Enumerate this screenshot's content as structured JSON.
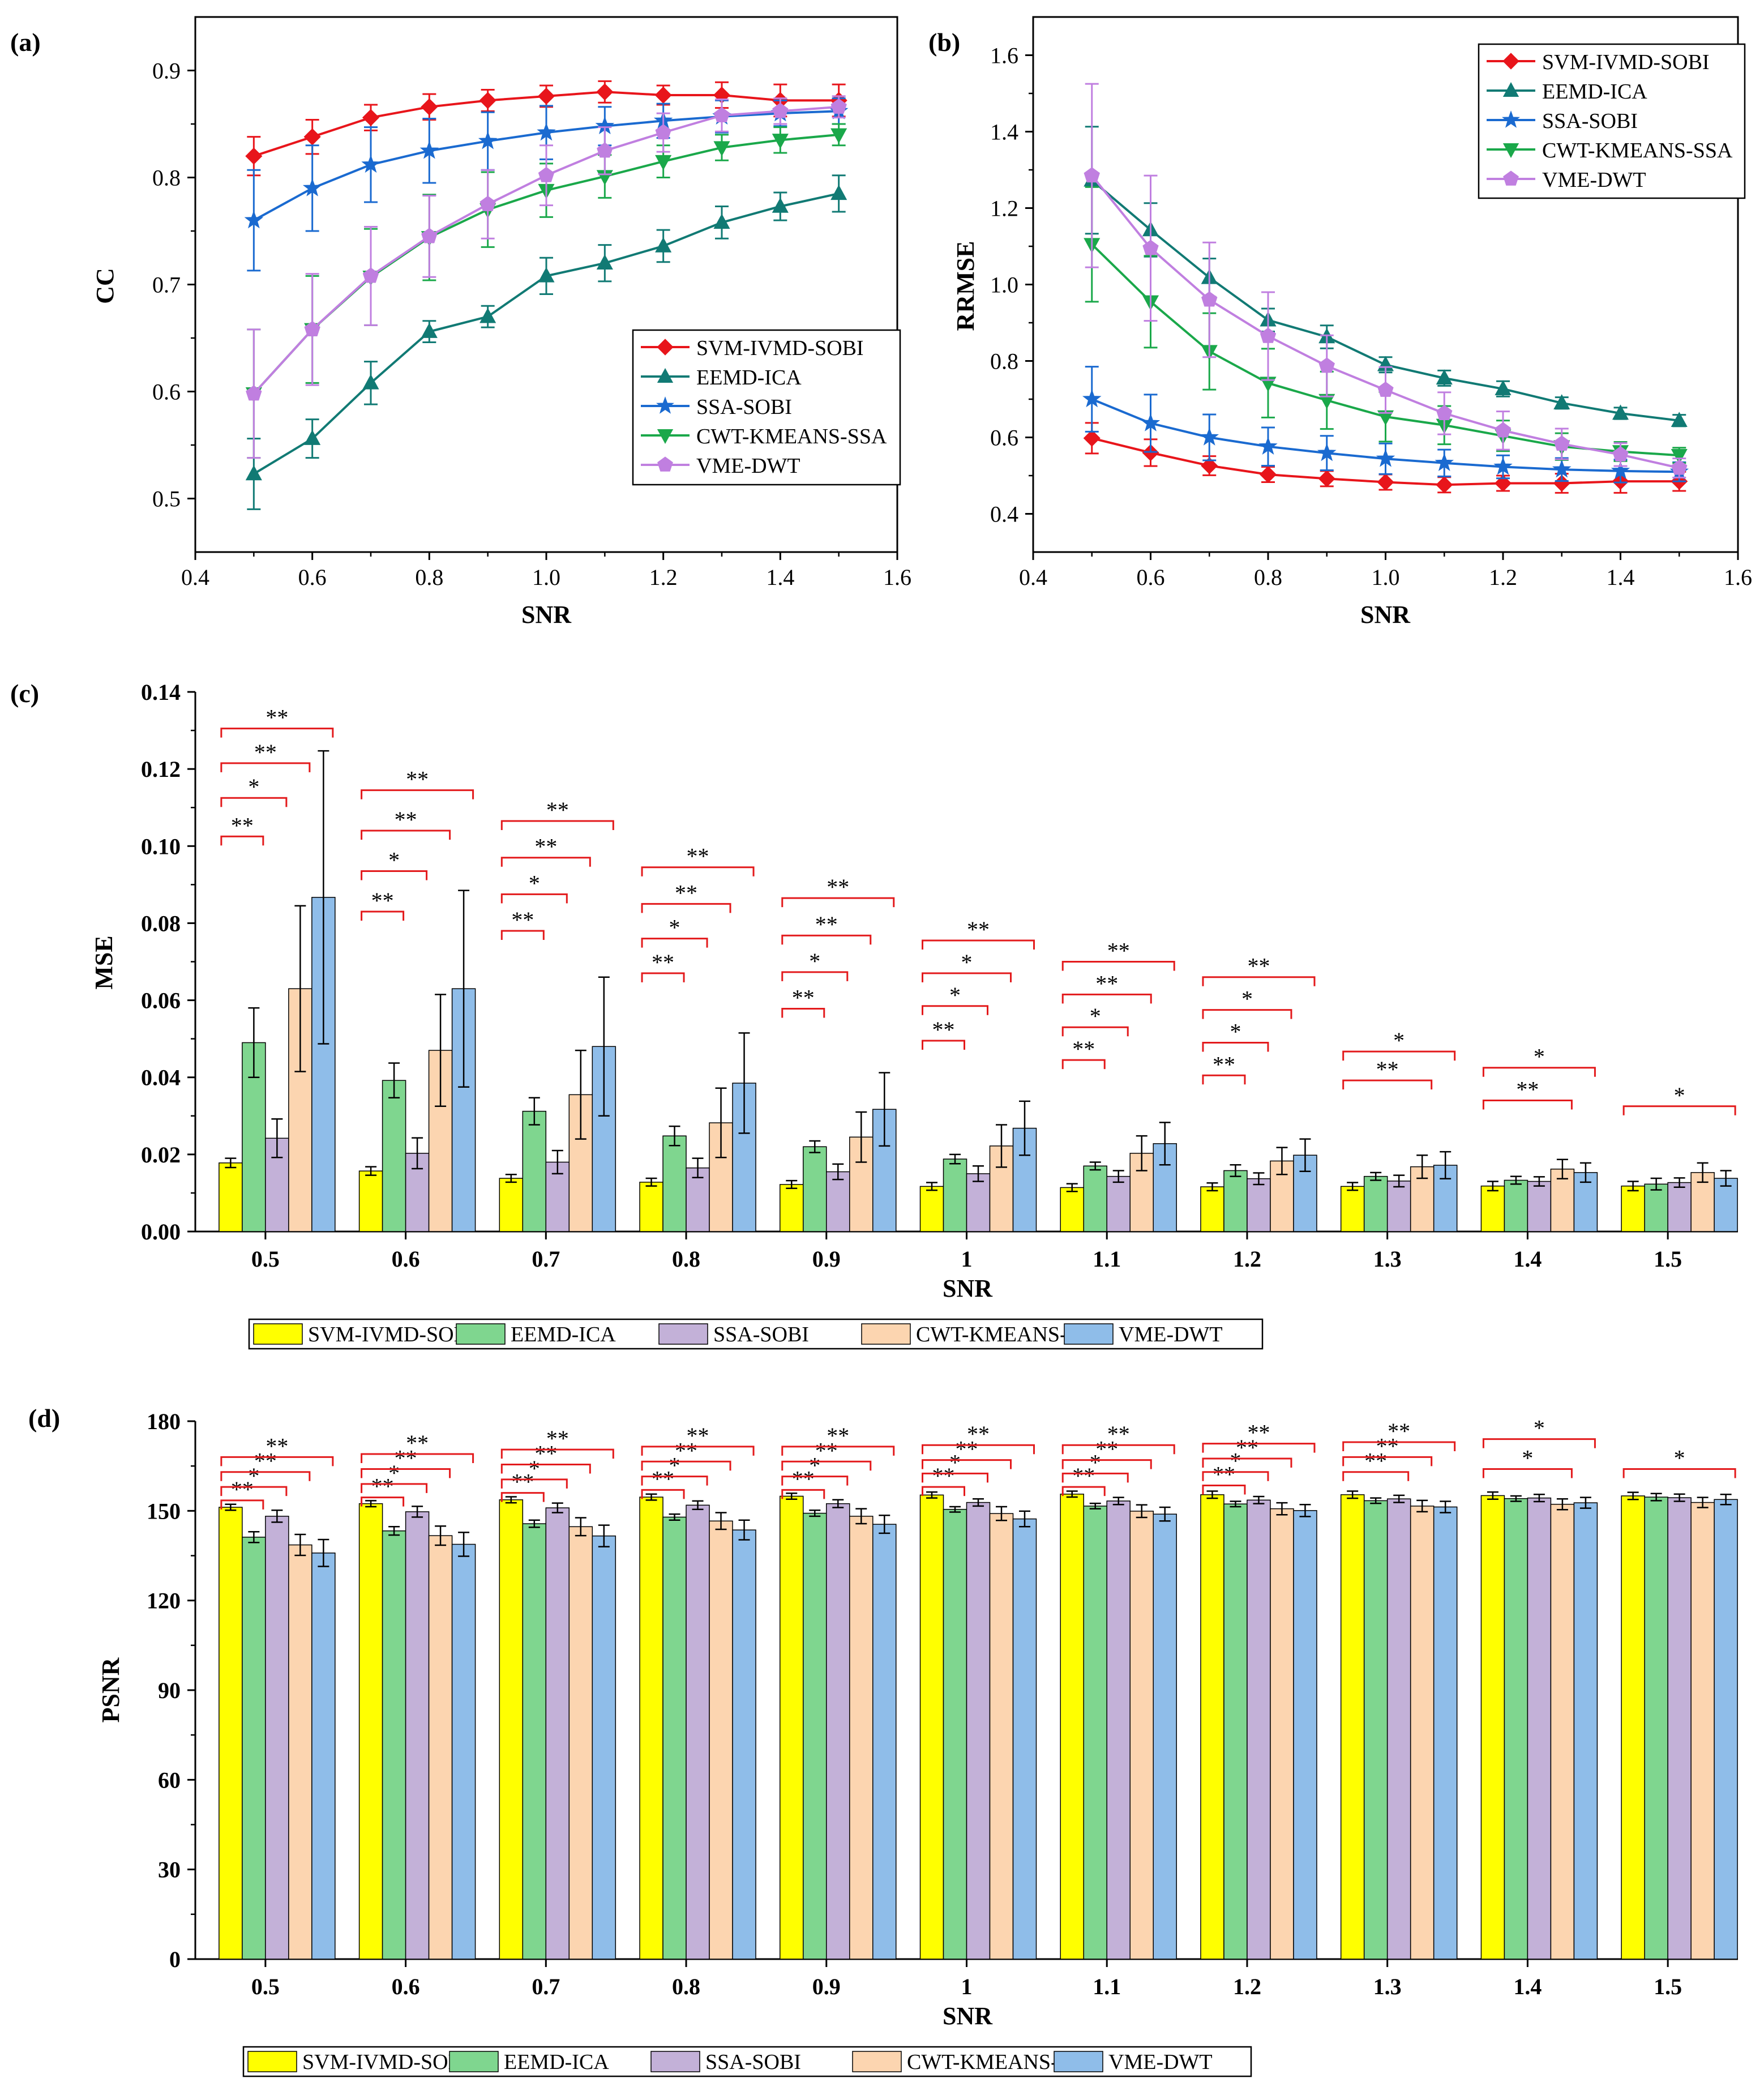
{
  "figure": {
    "series_names": [
      "SVM-IVMD-SOBI",
      "EEMD-ICA",
      "SSA-SOBI",
      "CWT-KMEANS-SSA",
      "VME-DWT"
    ],
    "line_colors": [
      "#e8151b",
      "#117a74",
      "#1a6ad0",
      "#1aa84a",
      "#c07fe0"
    ],
    "bar_colors": [
      "#ffff00",
      "#7fd68f",
      "#c3b1d8",
      "#fcd5b0",
      "#8fbde9"
    ],
    "sig_color": "#e31a1c"
  },
  "chart_data": [
    {
      "id": "a",
      "panel_label": "(a)",
      "type": "line",
      "xlabel": "SNR",
      "ylabel": "CC",
      "xlim": [
        0.4,
        1.6
      ],
      "ylim": [
        0.45,
        0.95
      ],
      "xticks": [
        0.4,
        0.6,
        0.8,
        1.0,
        1.2,
        1.4,
        1.6
      ],
      "xtick_labels": [
        "0.4",
        "0.6",
        "0.8",
        "1.0",
        "1.2",
        "1.4",
        "1.6"
      ],
      "yticks": [
        0.5,
        0.6,
        0.7,
        0.8,
        0.9
      ],
      "ytick_labels": [
        "0.5",
        "0.6",
        "0.7",
        "0.8",
        "0.9"
      ],
      "legend_position": "lower-right",
      "x": [
        0.5,
        0.6,
        0.7,
        0.8,
        0.9,
        1.0,
        1.1,
        1.2,
        1.3,
        1.4,
        1.5
      ],
      "series": [
        {
          "name": "SVM-IVMD-SOBI",
          "marker": "diamond",
          "values": [
            0.82,
            0.838,
            0.856,
            0.866,
            0.872,
            0.876,
            0.88,
            0.877,
            0.877,
            0.872,
            0.872
          ],
          "errors": [
            0.018,
            0.016,
            0.012,
            0.012,
            0.01,
            0.01,
            0.01,
            0.009,
            0.012,
            0.015,
            0.015
          ]
        },
        {
          "name": "EEMD-ICA",
          "marker": "triangle-up",
          "values": [
            0.523,
            0.556,
            0.608,
            0.656,
            0.67,
            0.708,
            0.72,
            0.736,
            0.758,
            0.773,
            0.785
          ],
          "errors": [
            0.033,
            0.018,
            0.02,
            0.01,
            0.01,
            0.017,
            0.017,
            0.015,
            0.015,
            0.013,
            0.017
          ]
        },
        {
          "name": "SSA-SOBI",
          "marker": "star",
          "values": [
            0.76,
            0.79,
            0.812,
            0.825,
            0.834,
            0.842,
            0.848,
            0.853,
            0.857,
            0.86,
            0.862
          ],
          "errors": [
            0.047,
            0.04,
            0.035,
            0.03,
            0.027,
            0.025,
            0.018,
            0.016,
            0.015,
            0.012,
            0.012
          ]
        },
        {
          "name": "CWT-KMEANS-SSA",
          "marker": "triangle-down",
          "values": [
            0.598,
            0.658,
            0.707,
            0.744,
            0.77,
            0.788,
            0.801,
            0.815,
            0.828,
            0.835,
            0.84
          ],
          "errors": [
            0.06,
            0.05,
            0.045,
            0.04,
            0.035,
            0.025,
            0.02,
            0.015,
            0.012,
            0.012,
            0.01
          ]
        },
        {
          "name": "VME-DWT",
          "marker": "pentagon",
          "values": [
            0.598,
            0.658,
            0.708,
            0.745,
            0.775,
            0.802,
            0.825,
            0.842,
            0.858,
            0.862,
            0.866
          ],
          "errors": [
            0.06,
            0.052,
            0.046,
            0.038,
            0.032,
            0.028,
            0.022,
            0.018,
            0.015,
            0.012,
            0.01
          ]
        }
      ]
    },
    {
      "id": "b",
      "panel_label": "(b)",
      "type": "line",
      "xlabel": "SNR",
      "ylabel": "RRMSE",
      "xlim": [
        0.4,
        1.6
      ],
      "ylim": [
        0.3,
        1.7
      ],
      "xticks": [
        0.4,
        0.6,
        0.8,
        1.0,
        1.2,
        1.4,
        1.6
      ],
      "xtick_labels": [
        "0.4",
        "0.6",
        "0.8",
        "1.0",
        "1.2",
        "1.4",
        "1.6"
      ],
      "yticks": [
        0.4,
        0.6,
        0.8,
        1.0,
        1.2,
        1.4,
        1.6
      ],
      "ytick_labels": [
        "0.4",
        "0.6",
        "0.8",
        "1.0",
        "1.2",
        "1.4",
        "1.6"
      ],
      "legend_position": "top-right",
      "x": [
        0.5,
        0.6,
        0.7,
        0.8,
        0.9,
        1.0,
        1.1,
        1.2,
        1.3,
        1.4,
        1.5
      ],
      "series": [
        {
          "name": "SVM-IVMD-SOBI",
          "marker": "diamond",
          "values": [
            0.598,
            0.56,
            0.526,
            0.503,
            0.492,
            0.483,
            0.476,
            0.48,
            0.48,
            0.485,
            0.485
          ],
          "errors": [
            0.04,
            0.035,
            0.025,
            0.02,
            0.02,
            0.02,
            0.02,
            0.02,
            0.025,
            0.03,
            0.025
          ]
        },
        {
          "name": "EEMD-ICA",
          "marker": "triangle-up",
          "values": [
            1.273,
            1.143,
            1.018,
            0.907,
            0.863,
            0.79,
            0.755,
            0.727,
            0.69,
            0.663,
            0.644
          ],
          "errors": [
            0.14,
            0.07,
            0.05,
            0.03,
            0.03,
            0.02,
            0.02,
            0.02,
            0.015,
            0.015,
            0.015
          ]
        },
        {
          "name": "SSA-SOBI",
          "marker": "star",
          "values": [
            0.7,
            0.637,
            0.6,
            0.576,
            0.559,
            0.544,
            0.533,
            0.523,
            0.516,
            0.512,
            0.51
          ],
          "errors": [
            0.085,
            0.075,
            0.06,
            0.05,
            0.045,
            0.04,
            0.035,
            0.03,
            0.03,
            0.03,
            0.025
          ]
        },
        {
          "name": "CWT-KMEANS-SSA",
          "marker": "triangle-down",
          "values": [
            1.105,
            0.955,
            0.825,
            0.742,
            0.697,
            0.654,
            0.632,
            0.604,
            0.576,
            0.563,
            0.553
          ],
          "errors": [
            0.15,
            0.12,
            0.1,
            0.09,
            0.075,
            0.065,
            0.05,
            0.04,
            0.035,
            0.025,
            0.02
          ]
        },
        {
          "name": "VME-DWT",
          "marker": "pentagon",
          "values": [
            1.285,
            1.095,
            0.96,
            0.865,
            0.787,
            0.724,
            0.663,
            0.618,
            0.583,
            0.555,
            0.52
          ],
          "errors": [
            0.24,
            0.19,
            0.15,
            0.115,
            0.08,
            0.06,
            0.055,
            0.05,
            0.04,
            0.03,
            0.025
          ]
        }
      ]
    },
    {
      "id": "c",
      "panel_label": "(c)",
      "type": "bar",
      "xlabel": "SNR",
      "ylabel": "MSE",
      "ylim": [
        0,
        0.14
      ],
      "yticks": [
        0,
        0.02,
        0.04,
        0.06,
        0.08,
        0.1,
        0.12,
        0.14
      ],
      "ytick_labels": [
        "0.00",
        "0.02",
        "0.04",
        "0.06",
        "0.08",
        "0.10",
        "0.12",
        "0.14"
      ],
      "categories": [
        "0.5",
        "0.6",
        "0.7",
        "0.8",
        "0.9",
        "1",
        "1.1",
        "1.2",
        "1.3",
        "1.4",
        "1.5"
      ],
      "legend_position": "bottom",
      "series": [
        {
          "name": "SVM-IVMD-SOBI",
          "values": [
            0.0178,
            0.0157,
            0.0138,
            0.0128,
            0.0122,
            0.0117,
            0.0114,
            0.0116,
            0.0117,
            0.0118,
            0.0118
          ],
          "errors": [
            0.0012,
            0.0011,
            0.001,
            0.001,
            0.001,
            0.001,
            0.001,
            0.001,
            0.001,
            0.0012,
            0.0012
          ]
        },
        {
          "name": "EEMD-ICA",
          "values": [
            0.049,
            0.0392,
            0.0312,
            0.0248,
            0.022,
            0.0188,
            0.017,
            0.0158,
            0.0143,
            0.0133,
            0.0123
          ],
          "errors": [
            0.009,
            0.0045,
            0.0035,
            0.0025,
            0.0015,
            0.0012,
            0.001,
            0.0015,
            0.001,
            0.001,
            0.0015
          ]
        },
        {
          "name": "SSA-SOBI",
          "values": [
            0.0242,
            0.0203,
            0.018,
            0.0165,
            0.0155,
            0.015,
            0.0143,
            0.0137,
            0.0131,
            0.013,
            0.0127
          ],
          "errors": [
            0.005,
            0.004,
            0.003,
            0.0025,
            0.002,
            0.002,
            0.0015,
            0.0015,
            0.0015,
            0.0012,
            0.0012
          ]
        },
        {
          "name": "CWT-KMEANS-SSA",
          "values": [
            0.063,
            0.047,
            0.0355,
            0.0282,
            0.0245,
            0.0222,
            0.0203,
            0.0183,
            0.0168,
            0.0162,
            0.0153
          ],
          "errors": [
            0.0215,
            0.0145,
            0.0115,
            0.009,
            0.0065,
            0.0055,
            0.0045,
            0.0035,
            0.003,
            0.0025,
            0.0025
          ]
        },
        {
          "name": "VME-DWT",
          "values": [
            0.0867,
            0.063,
            0.048,
            0.0385,
            0.0317,
            0.0268,
            0.0228,
            0.0198,
            0.0172,
            0.0153,
            0.0138
          ],
          "errors": [
            0.038,
            0.0255,
            0.018,
            0.013,
            0.0095,
            0.007,
            0.0055,
            0.0042,
            0.0035,
            0.0025,
            0.002
          ]
        }
      ],
      "significance": [
        [
          [
            "**",
            0.1025
          ],
          [
            "*",
            0.1125
          ],
          [
            "**",
            0.1215
          ],
          [
            "**",
            0.1305
          ]
        ],
        [
          [
            "**",
            0.083
          ],
          [
            "*",
            0.0935
          ],
          [
            "**",
            0.104
          ],
          [
            "**",
            0.1145
          ]
        ],
        [
          [
            "**",
            0.078
          ],
          [
            "*",
            0.0875
          ],
          [
            "**",
            0.097
          ],
          [
            "**",
            0.1065
          ]
        ],
        [
          [
            "**",
            0.067
          ],
          [
            "*",
            0.076
          ],
          [
            "**",
            0.085
          ],
          [
            "**",
            0.0945
          ]
        ],
        [
          [
            "**",
            0.0578
          ],
          [
            "*",
            0.0673
          ],
          [
            "**",
            0.0768
          ],
          [
            "**",
            0.0865
          ]
        ],
        [
          [
            "**",
            0.0495
          ],
          [
            "*",
            0.0585
          ],
          [
            "*",
            0.067
          ],
          [
            "**",
            0.0755
          ]
        ],
        [
          [
            "**",
            0.0445
          ],
          [
            "*",
            0.053
          ],
          [
            "**",
            0.0615
          ],
          [
            "**",
            0.07
          ]
        ],
        [
          [
            "**",
            0.0405
          ],
          [
            "*",
            0.049
          ],
          [
            "*",
            0.0575
          ],
          [
            "**",
            0.066
          ]
        ],
        [
          [
            "**",
            0.0392
          ],
          [
            "*",
            0.0467
          ]
        ],
        [
          [
            "**",
            0.034
          ],
          [
            "*",
            0.0425
          ]
        ],
        [
          [
            "*",
            0.0325
          ]
        ]
      ]
    },
    {
      "id": "d",
      "panel_label": "(d)",
      "type": "bar",
      "xlabel": "SNR",
      "ylabel": "PSNR",
      "ylim": [
        0,
        180
      ],
      "yticks": [
        0,
        30,
        60,
        90,
        120,
        150,
        180
      ],
      "ytick_labels": [
        "0",
        "30",
        "60",
        "90",
        "120",
        "150",
        "180"
      ],
      "categories": [
        "0.5",
        "0.6",
        "0.7",
        "0.8",
        "0.9",
        "1",
        "1.1",
        "1.2",
        "1.3",
        "1.4",
        "1.5"
      ],
      "legend_position": "bottom",
      "series": [
        {
          "name": "SVM-IVMD-SOBI",
          "values": [
            151.2,
            152.4,
            153.7,
            154.6,
            154.9,
            155.3,
            155.6,
            155.4,
            155.4,
            155.1,
            155.0
          ],
          "errors": [
            1.0,
            1.0,
            1.0,
            1.0,
            1.0,
            1.0,
            1.0,
            1.2,
            1.2,
            1.2,
            1.2
          ]
        },
        {
          "name": "EEMD-ICA",
          "values": [
            141.2,
            143.3,
            145.7,
            147.9,
            149.2,
            150.5,
            151.6,
            152.3,
            153.4,
            154.1,
            154.6
          ],
          "errors": [
            1.8,
            1.4,
            1.2,
            1.0,
            1.0,
            0.9,
            0.9,
            0.9,
            0.9,
            0.9,
            1.2
          ]
        },
        {
          "name": "SSA-SOBI",
          "values": [
            148.2,
            149.7,
            151.0,
            151.9,
            152.4,
            152.8,
            153.3,
            153.6,
            154.0,
            154.3,
            154.4
          ],
          "errors": [
            2.0,
            1.8,
            1.6,
            1.4,
            1.3,
            1.2,
            1.2,
            1.2,
            1.2,
            1.2,
            1.2
          ]
        },
        {
          "name": "CWT-KMEANS-SSA",
          "values": [
            138.6,
            141.7,
            144.7,
            146.6,
            148.2,
            149.1,
            149.9,
            150.7,
            151.6,
            152.2,
            152.8
          ],
          "errors": [
            3.5,
            3.2,
            3.0,
            2.8,
            2.5,
            2.3,
            2.1,
            2.0,
            1.9,
            1.8,
            1.7
          ]
        },
        {
          "name": "VME-DWT",
          "values": [
            135.9,
            138.8,
            141.6,
            143.6,
            145.5,
            147.3,
            148.9,
            150.1,
            151.3,
            152.7,
            153.8
          ],
          "errors": [
            4.5,
            4.0,
            3.6,
            3.3,
            3.0,
            2.6,
            2.3,
            2.0,
            1.9,
            1.8,
            1.7
          ]
        }
      ],
      "significance": [
        [
          [
            "**",
            153.5
          ],
          [
            "*",
            158.0
          ],
          [
            "**",
            163.0
          ],
          [
            "**",
            168.0
          ]
        ],
        [
          [
            "**",
            154.5
          ],
          [
            "*",
            159.0
          ],
          [
            "**",
            164.0
          ],
          [
            "**",
            169.0
          ]
        ],
        [
          [
            "**",
            156.0
          ],
          [
            "*",
            160.5
          ],
          [
            "**",
            165.5
          ],
          [
            "**",
            170.5
          ]
        ],
        [
          [
            "**",
            157.0
          ],
          [
            "*",
            161.5
          ],
          [
            "**",
            166.5
          ],
          [
            "**",
            171.5
          ]
        ],
        [
          [
            "**",
            157.0
          ],
          [
            "*",
            161.5
          ],
          [
            "**",
            166.5
          ],
          [
            "**",
            171.5
          ]
        ],
        [
          [
            "**",
            158.0
          ],
          [
            "*",
            162.5
          ],
          [
            "**",
            167.0
          ],
          [
            "**",
            172.0
          ]
        ],
        [
          [
            "**",
            158.0
          ],
          [
            "*",
            162.5
          ],
          [
            "**",
            167.0
          ],
          [
            "**",
            172.0
          ]
        ],
        [
          [
            "**",
            158.5
          ],
          [
            "*",
            163.0
          ],
          [
            "**",
            167.5
          ],
          [
            "**",
            172.5
          ]
        ],
        [
          [
            "**",
            163.0
          ],
          [
            "**",
            168.0
          ],
          [
            "**",
            173.0
          ]
        ],
        [
          [
            "*",
            164.0
          ],
          [
            "*",
            174.0
          ]
        ],
        [
          [
            "*",
            164.0
          ]
        ]
      ]
    }
  ]
}
